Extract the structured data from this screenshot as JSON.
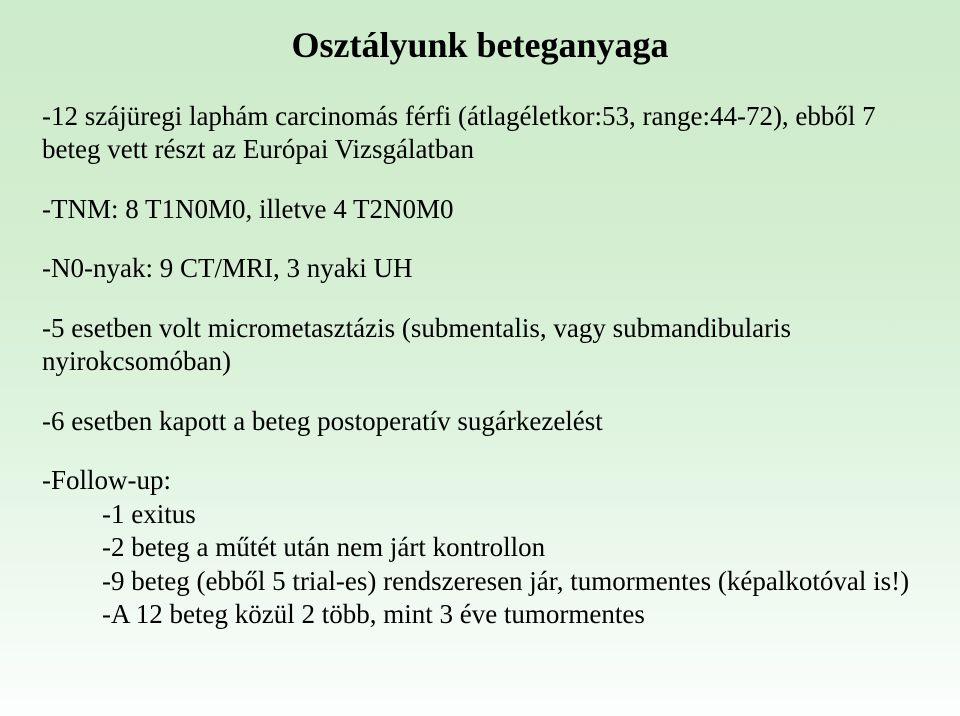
{
  "title": "Osztályunk beteganyaga",
  "p1": "-12 szájüregi laphám carcinomás férfi (átlagéletkor:53, range:44-72), ebből 7 beteg vett részt az Európai Vizsgálatban",
  "p2": "-TNM: 8 T1N0M0, illetve 4 T2N0M0",
  "p3": "-N0-nyak: 9 CT/MRI, 3 nyaki UH",
  "p4": "-5 esetben volt micrometasztázis (submentalis, vagy submandibularis nyirokcsomóban)",
  "p5": "-6 esetben kapott a beteg postoperatív sugárkezelést",
  "p6": "-Follow-up:",
  "s1": "-1 exitus",
  "s2": "-2 beteg a műtét után nem járt kontrollon",
  "s3": "-9 beteg (ebből 5 trial-es) rendszeresen jár, tumormentes (képalkotóval is!)",
  "s4": "-A 12 beteg közül 2  több, mint 3 éve tumormentes"
}
